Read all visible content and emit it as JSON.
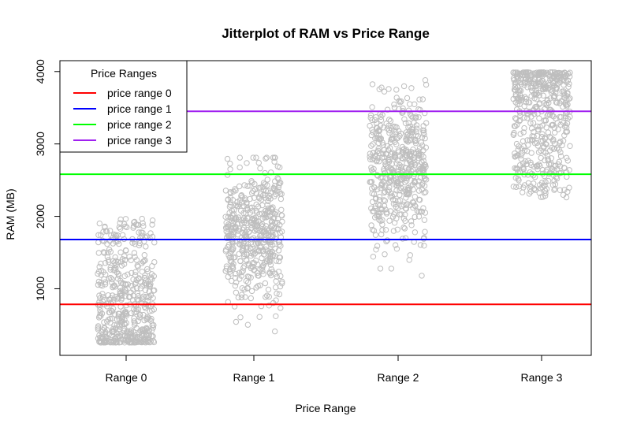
{
  "chart_data": {
    "type": "scatter",
    "title": "Jitterplot of RAM vs Price Range",
    "xlabel": "Price Range",
    "ylabel": "RAM (MB)",
    "categories": [
      "Range 0",
      "Range 1",
      "Range 2",
      "Range 3"
    ],
    "yticks": [
      "1000",
      "2000",
      "3000",
      "4000"
    ],
    "ylim": [
      80,
      4150
    ],
    "grid": false,
    "point_color": "#BEBEBE",
    "legend": {
      "title": "Price Ranges",
      "placement": "top-left",
      "items": [
        {
          "label": "price range 0",
          "color": "#FF0000"
        },
        {
          "label": "price range 1",
          "color": "#0000FF"
        },
        {
          "label": "price range 2",
          "color": "#00FF00"
        },
        {
          "label": "price range 3",
          "color": "#A020F0"
        }
      ]
    },
    "mean_lines": [
      {
        "category": "Range 0",
        "value": 785,
        "color": "#FF0000"
      },
      {
        "category": "Range 1",
        "value": 1680,
        "color": "#0000FF"
      },
      {
        "category": "Range 2",
        "value": 2582,
        "color": "#00FF00"
      },
      {
        "category": "Range 3",
        "value": 3450,
        "color": "#A020F0"
      }
    ],
    "series": [
      {
        "category": "Range 0",
        "count": 500,
        "y_min": 256,
        "y_max": 1980,
        "distribution": "right-skewed, dense 260-1100"
      },
      {
        "category": "Range 1",
        "count": 500,
        "y_min": 390,
        "y_max": 2810,
        "distribution": "centered near 1750"
      },
      {
        "category": "Range 2",
        "count": 500,
        "y_min": 1180,
        "y_max": 3920,
        "distribution": "centered near 2650"
      },
      {
        "category": "Range 3",
        "count": 500,
        "y_min": 2260,
        "y_max": 3990,
        "distribution": "left-skewed, dense 3100-3990"
      }
    ]
  }
}
